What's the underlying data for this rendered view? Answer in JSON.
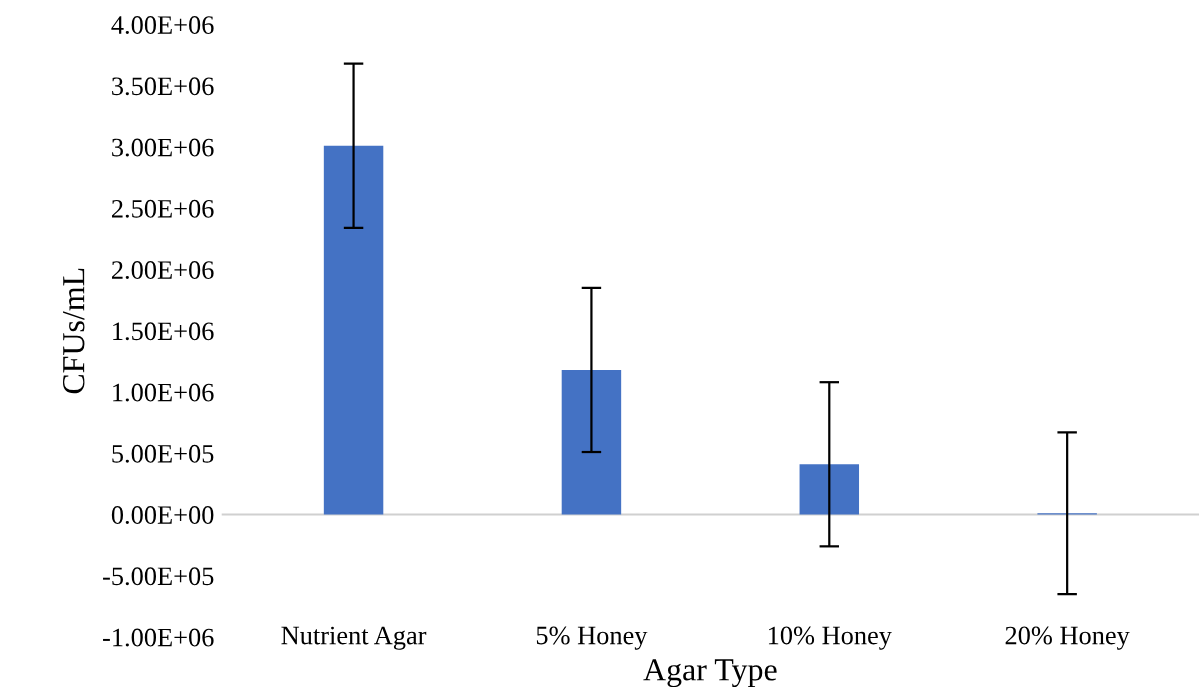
{
  "chart_data": {
    "type": "bar",
    "xlabel": "Agar Type",
    "ylabel": "CFUs/mL",
    "categories": [
      "Nutrient Agar",
      "5% Honey",
      "10% Honey",
      "20% Honey"
    ],
    "values": [
      3010000,
      1180000,
      410000,
      10000
    ],
    "errors": [
      670000,
      670000,
      670000,
      660000
    ],
    "color": "#4472c4",
    "ylim": [
      -1000000,
      4000000
    ],
    "yticks": [
      {
        "value": -1000000,
        "label": "-1.00E+06"
      },
      {
        "value": -500000,
        "label": "-5.00E+05"
      },
      {
        "value": 0,
        "label": "0.00E+00"
      },
      {
        "value": 500000,
        "label": "5.00E+05"
      },
      {
        "value": 1000000,
        "label": "1.00E+06"
      },
      {
        "value": 1500000,
        "label": "1.50E+06"
      },
      {
        "value": 2000000,
        "label": "2.00E+06"
      },
      {
        "value": 2500000,
        "label": "2.50E+06"
      },
      {
        "value": 3000000,
        "label": "3.00E+06"
      },
      {
        "value": 3500000,
        "label": "3.50E+06"
      },
      {
        "value": 4000000,
        "label": "4.00E+06"
      }
    ]
  }
}
